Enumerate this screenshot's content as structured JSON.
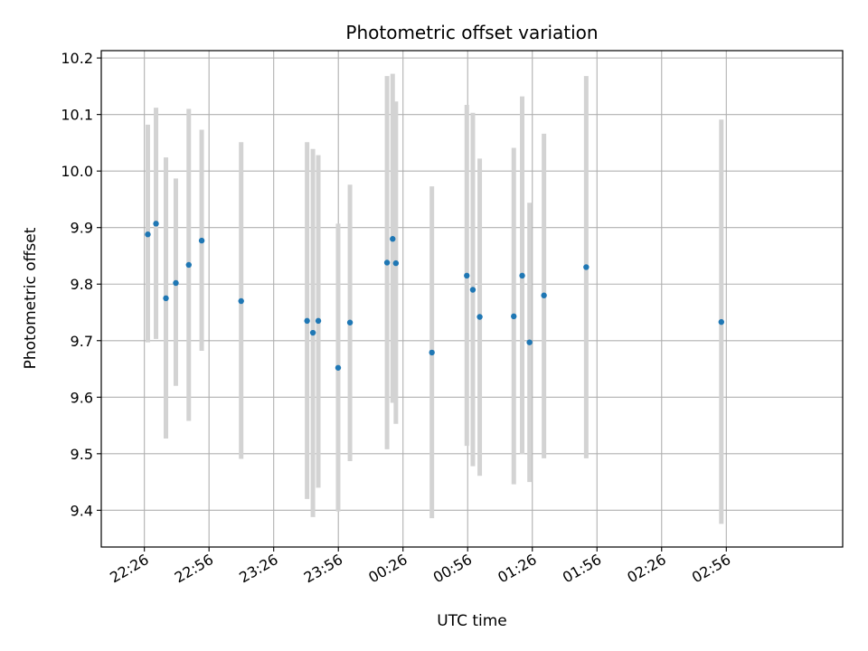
{
  "chart_data": {
    "type": "scatter",
    "title": "Photometric offset variation",
    "xlabel": "UTC time",
    "ylabel": "Photometric offset",
    "x_unit": "minutes after 22:00 UTC",
    "xlim": [
      6,
      350
    ],
    "ylim": [
      9.335,
      10.213
    ],
    "x_ticks": [
      {
        "value": 26,
        "label": "22:26"
      },
      {
        "value": 56,
        "label": "22:56"
      },
      {
        "value": 86,
        "label": "23:26"
      },
      {
        "value": 116,
        "label": "23:56"
      },
      {
        "value": 146,
        "label": "00:26"
      },
      {
        "value": 176,
        "label": "00:56"
      },
      {
        "value": 206,
        "label": "01:26"
      },
      {
        "value": 236,
        "label": "01:56"
      },
      {
        "value": 266,
        "label": "02:26"
      },
      {
        "value": 296,
        "label": "02:56"
      }
    ],
    "y_ticks": [
      9.4,
      9.5,
      9.6,
      9.7,
      9.8,
      9.9,
      10.0,
      10.1,
      10.2
    ],
    "y_tick_labels": [
      "9.4",
      "9.5",
      "9.6",
      "9.7",
      "9.8",
      "9.9",
      "10.0",
      "10.1",
      "10.2"
    ],
    "grid": true,
    "point_color": "#1f77b4",
    "errorbar_color": "#d3d3d3",
    "points": [
      {
        "x": 27.6,
        "y": 9.888,
        "ylow": 9.697,
        "yhigh": 10.082
      },
      {
        "x": 31.4,
        "y": 9.907,
        "ylow": 9.703,
        "yhigh": 10.112
      },
      {
        "x": 36.0,
        "y": 9.775,
        "ylow": 9.527,
        "yhigh": 10.024
      },
      {
        "x": 40.6,
        "y": 9.802,
        "ylow": 9.62,
        "yhigh": 9.987
      },
      {
        "x": 46.6,
        "y": 9.834,
        "ylow": 9.558,
        "yhigh": 10.11
      },
      {
        "x": 52.6,
        "y": 9.877,
        "ylow": 9.682,
        "yhigh": 10.073
      },
      {
        "x": 70.9,
        "y": 9.77,
        "ylow": 9.491,
        "yhigh": 10.051
      },
      {
        "x": 101.5,
        "y": 9.735,
        "ylow": 9.42,
        "yhigh": 10.051
      },
      {
        "x": 104.2,
        "y": 9.714,
        "ylow": 9.388,
        "yhigh": 10.039
      },
      {
        "x": 106.7,
        "y": 9.735,
        "ylow": 9.44,
        "yhigh": 10.028
      },
      {
        "x": 115.9,
        "y": 9.652,
        "ylow": 9.398,
        "yhigh": 9.907
      },
      {
        "x": 121.4,
        "y": 9.732,
        "ylow": 9.487,
        "yhigh": 9.976
      },
      {
        "x": 138.6,
        "y": 9.838,
        "ylow": 9.508,
        "yhigh": 10.168
      },
      {
        "x": 141.2,
        "y": 9.88,
        "ylow": 9.59,
        "yhigh": 10.172
      },
      {
        "x": 142.7,
        "y": 9.837,
        "ylow": 9.553,
        "yhigh": 10.123
      },
      {
        "x": 159.4,
        "y": 9.679,
        "ylow": 9.386,
        "yhigh": 9.973
      },
      {
        "x": 175.6,
        "y": 9.815,
        "ylow": 9.514,
        "yhigh": 10.117
      },
      {
        "x": 178.4,
        "y": 9.79,
        "ylow": 9.478,
        "yhigh": 10.103
      },
      {
        "x": 181.6,
        "y": 9.742,
        "ylow": 9.461,
        "yhigh": 10.022
      },
      {
        "x": 197.4,
        "y": 9.743,
        "ylow": 9.446,
        "yhigh": 10.041
      },
      {
        "x": 201.3,
        "y": 9.815,
        "ylow": 9.499,
        "yhigh": 10.132
      },
      {
        "x": 204.7,
        "y": 9.697,
        "ylow": 9.45,
        "yhigh": 9.944
      },
      {
        "x": 211.4,
        "y": 9.78,
        "ylow": 9.492,
        "yhigh": 10.066
      },
      {
        "x": 231.0,
        "y": 9.83,
        "ylow": 9.492,
        "yhigh": 10.168
      },
      {
        "x": 293.7,
        "y": 9.733,
        "ylow": 9.376,
        "yhigh": 10.091
      }
    ]
  }
}
